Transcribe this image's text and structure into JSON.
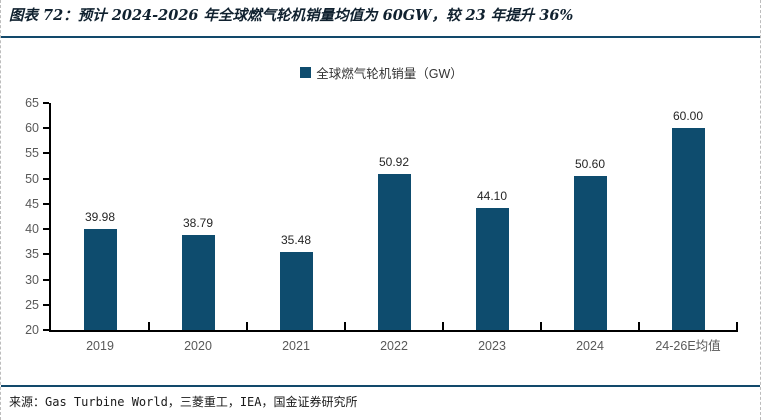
{
  "page": {
    "title": "图表 72：预计 2024-2026 年全球燃气轮机销量均值为 60GW，较 23 年提升 36%",
    "source": "来源：Gas Turbine World，三菱重工，IEA，国金证券研究所"
  },
  "chart_data": {
    "type": "bar",
    "series_name": "全球燃气轮机销量（GW）",
    "categories": [
      "2019",
      "2020",
      "2021",
      "2022",
      "2023",
      "2024",
      "24-26E均值"
    ],
    "values": [
      39.98,
      38.79,
      35.48,
      50.92,
      44.1,
      50.6,
      60.0
    ],
    "value_labels": [
      "39.98",
      "38.79",
      "35.48",
      "50.92",
      "44.10",
      "50.60",
      "60.00"
    ],
    "ylabel": "",
    "xlabel": "",
    "ylim": [
      20,
      65
    ],
    "ytick_step": 5,
    "grid": false,
    "legend_position": "top-center",
    "colors": {
      "bar": "#0E4C6E",
      "axis": "#000000",
      "tick_label": "#595959",
      "value_label": "#262626",
      "rule": "#12496b"
    }
  }
}
